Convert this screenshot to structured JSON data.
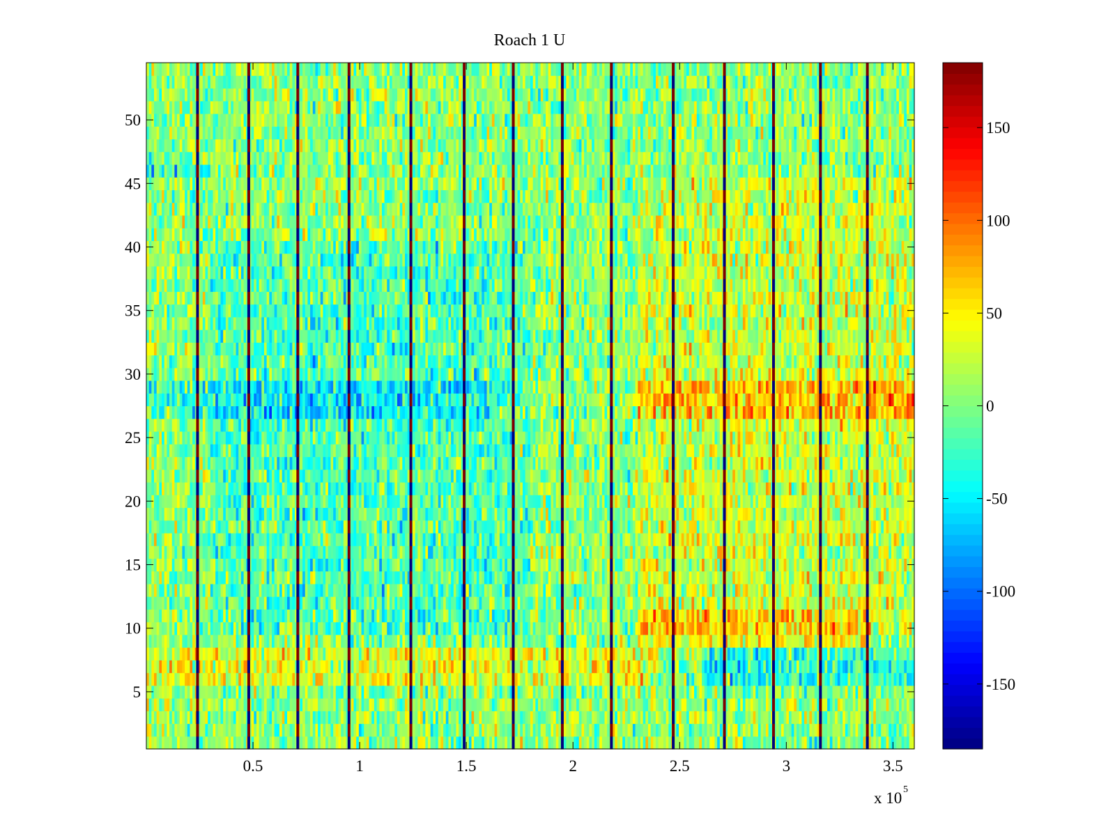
{
  "chart_data": {
    "type": "heatmap",
    "title": "Roach 1 U",
    "xlabel": "",
    "ylabel": "",
    "x_exponent_label": "x 10",
    "x_exponent_power": "5",
    "xlim": [
      0,
      3.6
    ],
    "ylim": [
      0.5,
      54.5
    ],
    "x_ticks": [
      0.5,
      1,
      1.5,
      2,
      2.5,
      3,
      3.5
    ],
    "x_tick_labels": [
      "0.5",
      "1",
      "1.5",
      "2",
      "2.5",
      "3",
      "3.5"
    ],
    "y_ticks": [
      5,
      10,
      15,
      20,
      25,
      30,
      35,
      40,
      45,
      50
    ],
    "y_tick_labels": [
      "5",
      "10",
      "15",
      "20",
      "25",
      "30",
      "35",
      "40",
      "45",
      "50"
    ],
    "rows": 54,
    "colorbar": {
      "colormap": "jet",
      "clim": [
        -185,
        185
      ],
      "ticks": [
        -150,
        -100,
        -50,
        0,
        50,
        100,
        150
      ],
      "tick_labels": [
        "-150",
        "-100",
        "-50",
        "0",
        "50",
        "100",
        "150"
      ]
    },
    "grid": false,
    "stripe_x_positions": [
      0.24,
      0.48,
      0.71,
      0.95,
      1.24,
      1.49,
      1.72,
      1.95,
      2.18,
      2.47,
      2.71,
      2.94,
      3.16,
      3.38
    ],
    "stripe_values": [
      -185,
      185
    ],
    "row_bias": [
      {
        "rows": [
          27,
          29
        ],
        "x_from": 0,
        "x_to": 1.6,
        "value": -35
      },
      {
        "rows": [
          27,
          29
        ],
        "x_from": 2.3,
        "x_to": 3.6,
        "value": 45
      },
      {
        "rows": [
          6,
          8
        ],
        "x_from": 0,
        "x_to": 2.4,
        "value": 30
      },
      {
        "rows": [
          6,
          8
        ],
        "x_from": 2.6,
        "x_to": 3.6,
        "value": -35
      },
      {
        "rows": [
          46,
          46
        ],
        "x_from": 0,
        "x_to": 0.3,
        "value": -45
      },
      {
        "rows": [
          9,
          11
        ],
        "x_from": 2.3,
        "x_to": 3.4,
        "value": 40
      }
    ],
    "region_bias": [
      {
        "x_from": 0.3,
        "x_to": 1.8,
        "y_from": 10,
        "y_to": 40,
        "value": -25
      },
      {
        "x_from": 2.3,
        "x_to": 3.6,
        "y_from": 10,
        "y_to": 45,
        "value": 25
      }
    ]
  }
}
